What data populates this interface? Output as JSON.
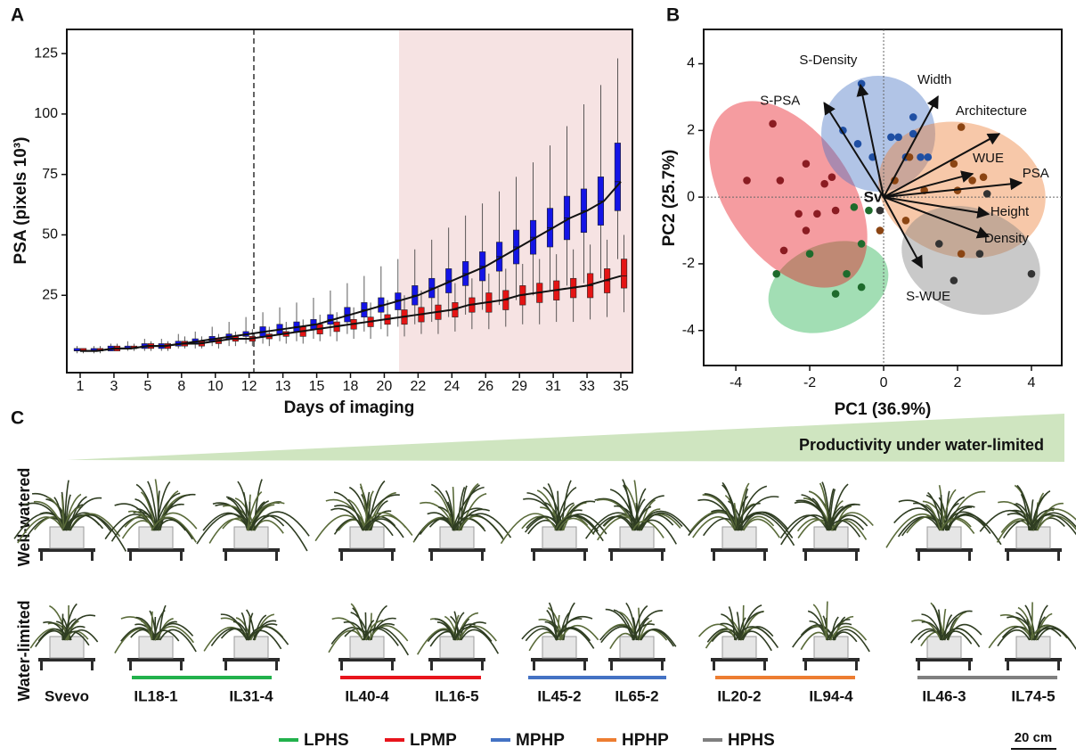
{
  "chart_data": [
    {
      "type": "box",
      "panel_label": "A",
      "xlabel": "Days of imaging",
      "ylabel": "PSA (pixels 10³)",
      "categories": [
        "1",
        null,
        "3",
        null,
        "5",
        null,
        "8",
        null,
        "10",
        null,
        "12",
        null,
        "13",
        null,
        "15",
        null,
        "18",
        null,
        "20",
        null,
        "22",
        null,
        "24",
        null,
        "26",
        null,
        "29",
        null,
        "31",
        null,
        "33",
        null,
        "35"
      ],
      "ylim": [
        -7,
        135
      ],
      "yticks": [
        25,
        50,
        75,
        100,
        125
      ],
      "series": [
        {
          "color": "#1414e6",
          "low": [
            1,
            1,
            2,
            2,
            2,
            2,
            3,
            3,
            4,
            4,
            5,
            5,
            6,
            6,
            7,
            8,
            9,
            10,
            11,
            12,
            13,
            14,
            16,
            17,
            19,
            21,
            23,
            25,
            27,
            29,
            30,
            32,
            40
          ],
          "q1": [
            2,
            2,
            2,
            3,
            3,
            3,
            4,
            5,
            6,
            7,
            8,
            8,
            9,
            10,
            11,
            13,
            14,
            16,
            18,
            19,
            21,
            24,
            26,
            29,
            31,
            35,
            38,
            42,
            45,
            48,
            51,
            54,
            60
          ],
          "median": [
            2,
            2,
            3,
            3,
            4,
            4,
            5,
            6,
            7,
            8,
            9,
            10,
            11,
            12,
            13,
            15,
            17,
            19,
            21,
            23,
            25,
            28,
            31,
            34,
            37,
            41,
            45,
            49,
            53,
            57,
            60,
            64,
            72
          ],
          "q3": [
            3,
            3,
            4,
            4,
            5,
            5,
            6,
            7,
            8,
            9,
            10,
            12,
            13,
            14,
            15,
            17,
            20,
            22,
            24,
            26,
            29,
            32,
            36,
            39,
            43,
            47,
            52,
            56,
            61,
            66,
            69,
            74,
            88
          ],
          "high": [
            4,
            4,
            5,
            6,
            7,
            7,
            9,
            10,
            12,
            14,
            16,
            18,
            20,
            22,
            24,
            27,
            30,
            33,
            37,
            40,
            44,
            48,
            53,
            58,
            63,
            68,
            74,
            80,
            87,
            95,
            104,
            112,
            123
          ]
        },
        {
          "color": "#e41414",
          "low": [
            1,
            1,
            2,
            2,
            2,
            2,
            3,
            3,
            3,
            4,
            4,
            4,
            5,
            5,
            6,
            6,
            7,
            7,
            8,
            8,
            9,
            9,
            10,
            11,
            11,
            12,
            13,
            13,
            14,
            14,
            15,
            16,
            18
          ],
          "q1": [
            2,
            2,
            2,
            3,
            3,
            3,
            4,
            4,
            5,
            6,
            6,
            7,
            8,
            8,
            9,
            10,
            11,
            12,
            13,
            13,
            14,
            15,
            16,
            18,
            18,
            19,
            21,
            22,
            23,
            24,
            24,
            26,
            28
          ],
          "median": [
            2,
            2,
            3,
            3,
            4,
            4,
            5,
            5,
            6,
            7,
            7,
            8,
            9,
            10,
            11,
            12,
            13,
            14,
            15,
            16,
            17,
            18,
            19,
            21,
            22,
            23,
            25,
            26,
            27,
            28,
            29,
            31,
            33
          ],
          "q3": [
            3,
            3,
            4,
            4,
            5,
            5,
            6,
            6,
            7,
            8,
            8,
            9,
            10,
            12,
            13,
            14,
            15,
            16,
            17,
            19,
            20,
            21,
            22,
            24,
            26,
            27,
            29,
            30,
            31,
            32,
            34,
            36,
            40
          ],
          "high": [
            3,
            4,
            5,
            5,
            6,
            6,
            8,
            8,
            9,
            10,
            11,
            12,
            14,
            15,
            17,
            18,
            20,
            22,
            23,
            25,
            27,
            28,
            30,
            32,
            34,
            36,
            38,
            40,
            42,
            44,
            46,
            48,
            50
          ]
        }
      ]
    },
    {
      "type": "scatter",
      "panel_label": "B",
      "xlabel": "PC1 (36.9%)",
      "ylabel": "PC2 (25.7%)",
      "xlim": [
        -4.87,
        4.82
      ],
      "ylim": [
        -5.05,
        5.03
      ],
      "xticks": [
        -4,
        -2,
        0,
        2,
        4
      ],
      "yticks": [
        -4,
        -2,
        0,
        2,
        4
      ],
      "annotation": "Sv",
      "series": [
        {
          "name": "LPHS",
          "color": "#1e6b2c",
          "region_color": "#22b14c",
          "x": [
            -2.0,
            -2.9,
            -1.3,
            -0.6,
            -1.0,
            -0.6,
            -0.4,
            -0.8
          ],
          "y": [
            -1.7,
            -2.3,
            -2.9,
            -2.7,
            -2.3,
            -1.4,
            -0.4,
            -0.3
          ]
        },
        {
          "name": "LPMP",
          "color": "#8b1c22",
          "region_color": "#e8141c",
          "x": [
            -3.0,
            -3.7,
            -2.8,
            -2.1,
            -1.6,
            -1.4,
            -2.3,
            -1.8,
            -2.7,
            -2.1,
            -1.3
          ],
          "y": [
            2.2,
            0.5,
            0.5,
            1.0,
            0.4,
            0.6,
            -0.5,
            -0.5,
            -1.6,
            -1.0,
            -0.4
          ]
        },
        {
          "name": "MPHP",
          "color": "#1f4fa3",
          "region_color": "#4472c4",
          "x": [
            -0.6,
            -1.1,
            -0.7,
            -0.3,
            0.2,
            0.4,
            0.8,
            0.8,
            1.0,
            1.2,
            0.6
          ],
          "y": [
            3.4,
            2.0,
            1.6,
            1.2,
            1.8,
            1.8,
            2.4,
            1.9,
            1.2,
            1.2,
            1.2
          ]
        },
        {
          "name": "HPHP",
          "color": "#8b4513",
          "region_color": "#ed7d31",
          "x": [
            2.1,
            0.7,
            1.9,
            2.4,
            2.7,
            2.0,
            1.1,
            0.6,
            2.1,
            -0.1,
            0.3
          ],
          "y": [
            2.1,
            1.2,
            1.0,
            0.5,
            0.6,
            0.2,
            0.2,
            -0.7,
            -1.7,
            -1.0,
            0.5
          ]
        },
        {
          "name": "HPHS",
          "color": "#333333",
          "region_color": "#7f7f7f",
          "x": [
            1.5,
            2.6,
            1.9,
            2.8,
            4.0,
            -0.1
          ],
          "y": [
            -1.4,
            -1.7,
            -2.5,
            0.1,
            -2.3,
            -0.4
          ]
        }
      ],
      "loadings": [
        {
          "label": "S-Density",
          "x": -0.63,
          "y": 3.37
        },
        {
          "label": "S-PSA",
          "x": -1.61,
          "y": 2.83
        },
        {
          "label": "Width",
          "x": 1.47,
          "y": 3.02
        },
        {
          "label": "Architecture",
          "x": 3.13,
          "y": 1.9
        },
        {
          "label": "WUE",
          "x": 2.41,
          "y": 0.7
        },
        {
          "label": "PSA",
          "x": 3.73,
          "y": 0.43
        },
        {
          "label": "Height",
          "x": 2.84,
          "y": -0.51
        },
        {
          "label": "Density",
          "x": 2.84,
          "y": -1.18
        },
        {
          "label": "S-WUE",
          "x": 1.04,
          "y": -2.11
        }
      ]
    }
  ],
  "panel_c": {
    "label": "C",
    "banner": "Productivity under water-limited",
    "rows": [
      "Well-watered",
      "Water-limited"
    ],
    "genotypes": [
      "Svevo",
      "IL18-1",
      "IL31-4",
      "IL40-4",
      "IL16-5",
      "IL45-2",
      "IL65-2",
      "IL20-2",
      "IL94-4",
      "IL46-3",
      "IL74-5"
    ],
    "scale": "20 cm"
  }
}
